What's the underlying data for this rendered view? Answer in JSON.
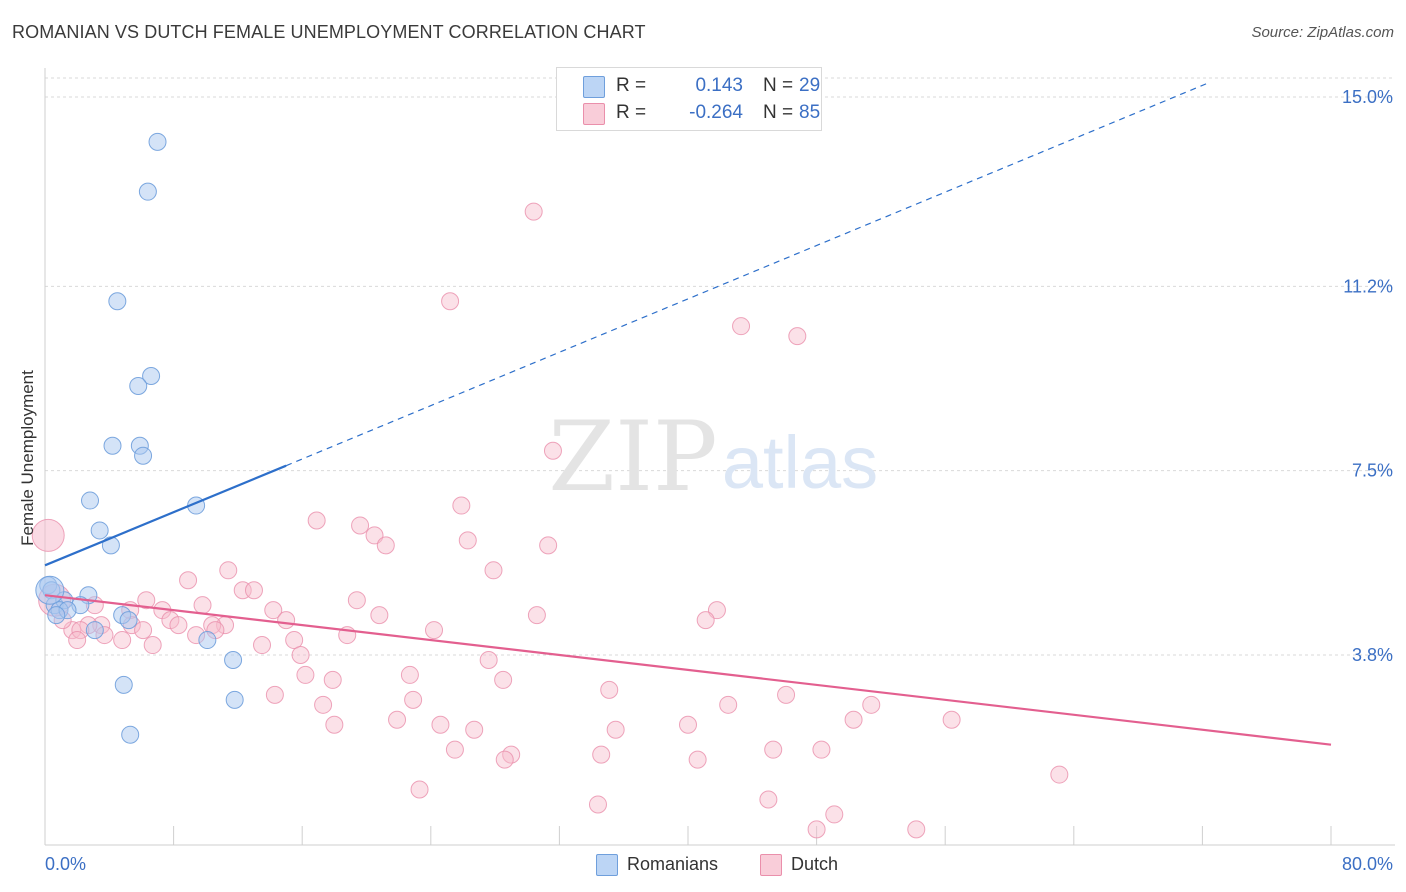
{
  "title": "ROMANIAN VS DUTCH FEMALE UNEMPLOYMENT CORRELATION CHART",
  "source": "Source: ZipAtlas.com",
  "watermark": {
    "zip": "ZIP",
    "atlas": "atlas"
  },
  "legend": {
    "r_label": "R =",
    "n_label": "N =",
    "rows": [
      {
        "series": "Romanians",
        "r": "0.143",
        "n": "29"
      },
      {
        "series": "Dutch",
        "r": "-0.264",
        "n": "85"
      }
    ]
  },
  "colors": {
    "romanians_fill": "#a9c8f0",
    "romanians_stroke": "#6f9fdc",
    "romanians_line": "#2d6fca",
    "dutch_fill": "#f6bccd",
    "dutch_stroke": "#ea8fab",
    "dutch_line": "#e35f8f",
    "grid": "#d9d9d9",
    "axis_text": "#3b6fc4"
  },
  "chart_data": {
    "type": "scatter",
    "title": "ROMANIAN VS DUTCH FEMALE UNEMPLOYMENT CORRELATION CHART",
    "xlabel": "",
    "ylabel": "Female Unemployment",
    "xlim": [
      0,
      80
    ],
    "ylim": [
      0,
      15.5
    ],
    "x_tick_labels": [
      "0.0%",
      "80.0%"
    ],
    "y_ticks": [
      {
        "value": 15.0,
        "label": "15.0%"
      },
      {
        "value": 11.2,
        "label": "11.2%"
      },
      {
        "value": 7.5,
        "label": "7.5%"
      },
      {
        "value": 3.8,
        "label": "3.8%"
      }
    ],
    "series": [
      {
        "name": "Romanians",
        "r": 0.143,
        "n": 29,
        "trend": {
          "x0": 0,
          "y0": 5.6,
          "x1": 15,
          "y1": 7.6,
          "dashed_to": {
            "x": 72.5,
            "y": 15.3
          }
        },
        "points": [
          [
            7.0,
            14.1
          ],
          [
            6.4,
            13.1
          ],
          [
            4.5,
            10.9
          ],
          [
            6.6,
            9.4
          ],
          [
            5.8,
            9.2
          ],
          [
            4.2,
            8.0
          ],
          [
            5.9,
            8.0
          ],
          [
            6.1,
            7.8
          ],
          [
            2.8,
            6.9
          ],
          [
            9.4,
            6.8
          ],
          [
            3.4,
            6.3
          ],
          [
            4.1,
            6.0
          ],
          [
            0.2,
            5.2
          ],
          [
            0.4,
            5.1
          ],
          [
            2.7,
            5.0
          ],
          [
            0.6,
            4.8
          ],
          [
            1.2,
            4.9
          ],
          [
            2.2,
            4.8
          ],
          [
            0.9,
            4.7
          ],
          [
            1.4,
            4.7
          ],
          [
            0.7,
            4.6
          ],
          [
            4.8,
            4.6
          ],
          [
            5.2,
            4.5
          ],
          [
            3.1,
            4.3
          ],
          [
            10.1,
            4.1
          ],
          [
            11.7,
            3.7
          ],
          [
            4.9,
            3.2
          ],
          [
            11.8,
            2.9
          ],
          [
            5.3,
            2.2
          ]
        ],
        "large_points": [
          [
            0.3,
            5.1
          ]
        ]
      },
      {
        "name": "Dutch",
        "r": -0.264,
        "n": 85,
        "trend": {
          "x0": 0,
          "y0": 5.0,
          "x1": 80,
          "y1": 2.0
        },
        "points": [
          [
            30.4,
            12.7
          ],
          [
            25.2,
            10.9
          ],
          [
            43.3,
            10.4
          ],
          [
            46.8,
            10.2
          ],
          [
            31.6,
            7.9
          ],
          [
            25.9,
            6.8
          ],
          [
            16.9,
            6.5
          ],
          [
            19.6,
            6.4
          ],
          [
            20.5,
            6.2
          ],
          [
            26.3,
            6.1
          ],
          [
            31.3,
            6.0
          ],
          [
            21.2,
            6.0
          ],
          [
            11.4,
            5.5
          ],
          [
            27.9,
            5.5
          ],
          [
            8.9,
            5.3
          ],
          [
            12.3,
            5.1
          ],
          [
            13.0,
            5.1
          ],
          [
            19.4,
            4.9
          ],
          [
            6.3,
            4.9
          ],
          [
            9.8,
            4.8
          ],
          [
            7.3,
            4.7
          ],
          [
            5.3,
            4.7
          ],
          [
            14.2,
            4.7
          ],
          [
            41.8,
            4.7
          ],
          [
            20.8,
            4.6
          ],
          [
            30.6,
            4.6
          ],
          [
            15.0,
            4.5
          ],
          [
            41.1,
            4.5
          ],
          [
            7.8,
            4.5
          ],
          [
            8.3,
            4.4
          ],
          [
            11.2,
            4.4
          ],
          [
            10.4,
            4.4
          ],
          [
            5.4,
            4.4
          ],
          [
            3.5,
            4.4
          ],
          [
            2.7,
            4.4
          ],
          [
            24.2,
            4.3
          ],
          [
            1.7,
            4.3
          ],
          [
            18.8,
            4.2
          ],
          [
            6.1,
            4.3
          ],
          [
            10.6,
            4.3
          ],
          [
            3.7,
            4.2
          ],
          [
            9.4,
            4.2
          ],
          [
            2.2,
            4.3
          ],
          [
            15.5,
            4.1
          ],
          [
            4.8,
            4.1
          ],
          [
            13.5,
            4.0
          ],
          [
            6.7,
            4.0
          ],
          [
            15.9,
            3.8
          ],
          [
            27.6,
            3.7
          ],
          [
            22.7,
            3.4
          ],
          [
            16.2,
            3.4
          ],
          [
            17.9,
            3.3
          ],
          [
            28.5,
            3.3
          ],
          [
            35.1,
            3.1
          ],
          [
            14.3,
            3.0
          ],
          [
            46.1,
            3.0
          ],
          [
            22.9,
            2.9
          ],
          [
            17.3,
            2.8
          ],
          [
            42.5,
            2.8
          ],
          [
            51.4,
            2.8
          ],
          [
            21.9,
            2.5
          ],
          [
            50.3,
            2.5
          ],
          [
            56.4,
            2.5
          ],
          [
            18.0,
            2.4
          ],
          [
            24.6,
            2.4
          ],
          [
            40.0,
            2.4
          ],
          [
            26.7,
            2.3
          ],
          [
            35.5,
            2.3
          ],
          [
            25.5,
            1.9
          ],
          [
            45.3,
            1.9
          ],
          [
            48.3,
            1.9
          ],
          [
            29.0,
            1.8
          ],
          [
            34.6,
            1.8
          ],
          [
            28.6,
            1.7
          ],
          [
            40.6,
            1.7
          ],
          [
            63.1,
            1.4
          ],
          [
            23.3,
            1.1
          ],
          [
            45.0,
            0.9
          ],
          [
            34.4,
            0.8
          ],
          [
            49.1,
            0.6
          ],
          [
            48.0,
            0.3
          ],
          [
            54.2,
            0.3
          ],
          [
            3.1,
            4.8
          ],
          [
            1.1,
            4.5
          ],
          [
            2.0,
            4.1
          ]
        ],
        "large_points": [
          [
            0.2,
            6.2
          ],
          [
            0.6,
            4.9
          ]
        ]
      }
    ]
  }
}
